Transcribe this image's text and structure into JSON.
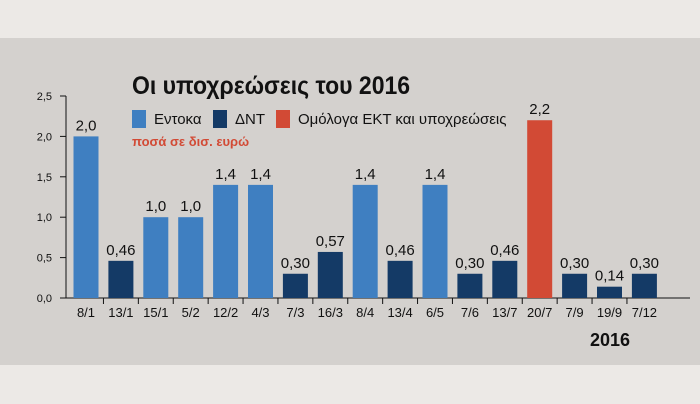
{
  "chart_data": {
    "type": "bar",
    "title": "Οι υποχρεώσεις του 2016",
    "subtitle": "ποσά σε δισ. ευρώ",
    "year_label": "2016",
    "ylim": [
      0,
      2.5
    ],
    "yticks": [
      {
        "value": 0,
        "label": "0,0"
      },
      {
        "value": 0.5,
        "label": "0,5"
      },
      {
        "value": 1.0,
        "label": "1,0"
      },
      {
        "value": 1.5,
        "label": "1,5"
      },
      {
        "value": 2.0,
        "label": "2,0"
      },
      {
        "value": 2.5,
        "label": "2,5"
      }
    ],
    "grid": false,
    "legend": [
      {
        "name": "Εντοκα",
        "color": "#3f7fc1"
      },
      {
        "name": "ΔΝΤ",
        "color": "#143a66"
      },
      {
        "name": "Ομόλογα ΕΚΤ και υποχρεώσεις",
        "color": "#d24a35"
      }
    ],
    "bars": [
      {
        "category": "8/1",
        "value": 2.0,
        "label": "2,0",
        "series": "Εντοκα"
      },
      {
        "category": "13/1",
        "value": 0.46,
        "label": "0,46",
        "series": "ΔΝΤ"
      },
      {
        "category": "15/1",
        "value": 1.0,
        "label": "1,0",
        "series": "Εντοκα"
      },
      {
        "category": "5/2",
        "value": 1.0,
        "label": "1,0",
        "series": "Εντοκα"
      },
      {
        "category": "12/2",
        "value": 1.4,
        "label": "1,4",
        "series": "Εντοκα"
      },
      {
        "category": "4/3",
        "value": 1.4,
        "label": "1,4",
        "series": "Εντοκα"
      },
      {
        "category": "7/3",
        "value": 0.3,
        "label": "0,30",
        "series": "ΔΝΤ"
      },
      {
        "category": "16/3",
        "value": 0.57,
        "label": "0,57",
        "series": "ΔΝΤ"
      },
      {
        "category": "8/4",
        "value": 1.4,
        "label": "1,4",
        "series": "Εντοκα"
      },
      {
        "category": "13/4",
        "value": 0.46,
        "label": "0,46",
        "series": "ΔΝΤ"
      },
      {
        "category": "6/5",
        "value": 1.4,
        "label": "1,4",
        "series": "Εντοκα"
      },
      {
        "category": "7/6",
        "value": 0.3,
        "label": "0,30",
        "series": "ΔΝΤ"
      },
      {
        "category": "13/7",
        "value": 0.46,
        "label": "0,46",
        "series": "ΔΝΤ"
      },
      {
        "category": "20/7",
        "value": 2.2,
        "label": "2,2",
        "series": "Ομόλογα ΕΚΤ και υποχρεώσεις"
      },
      {
        "category": "7/9",
        "value": 0.3,
        "label": "0,30",
        "series": "ΔΝΤ"
      },
      {
        "category": "19/9",
        "value": 0.14,
        "label": "0,14",
        "series": "ΔΝΤ"
      },
      {
        "category": "7/12",
        "value": 0.3,
        "label": "0,30",
        "series": "ΔΝΤ"
      }
    ]
  }
}
